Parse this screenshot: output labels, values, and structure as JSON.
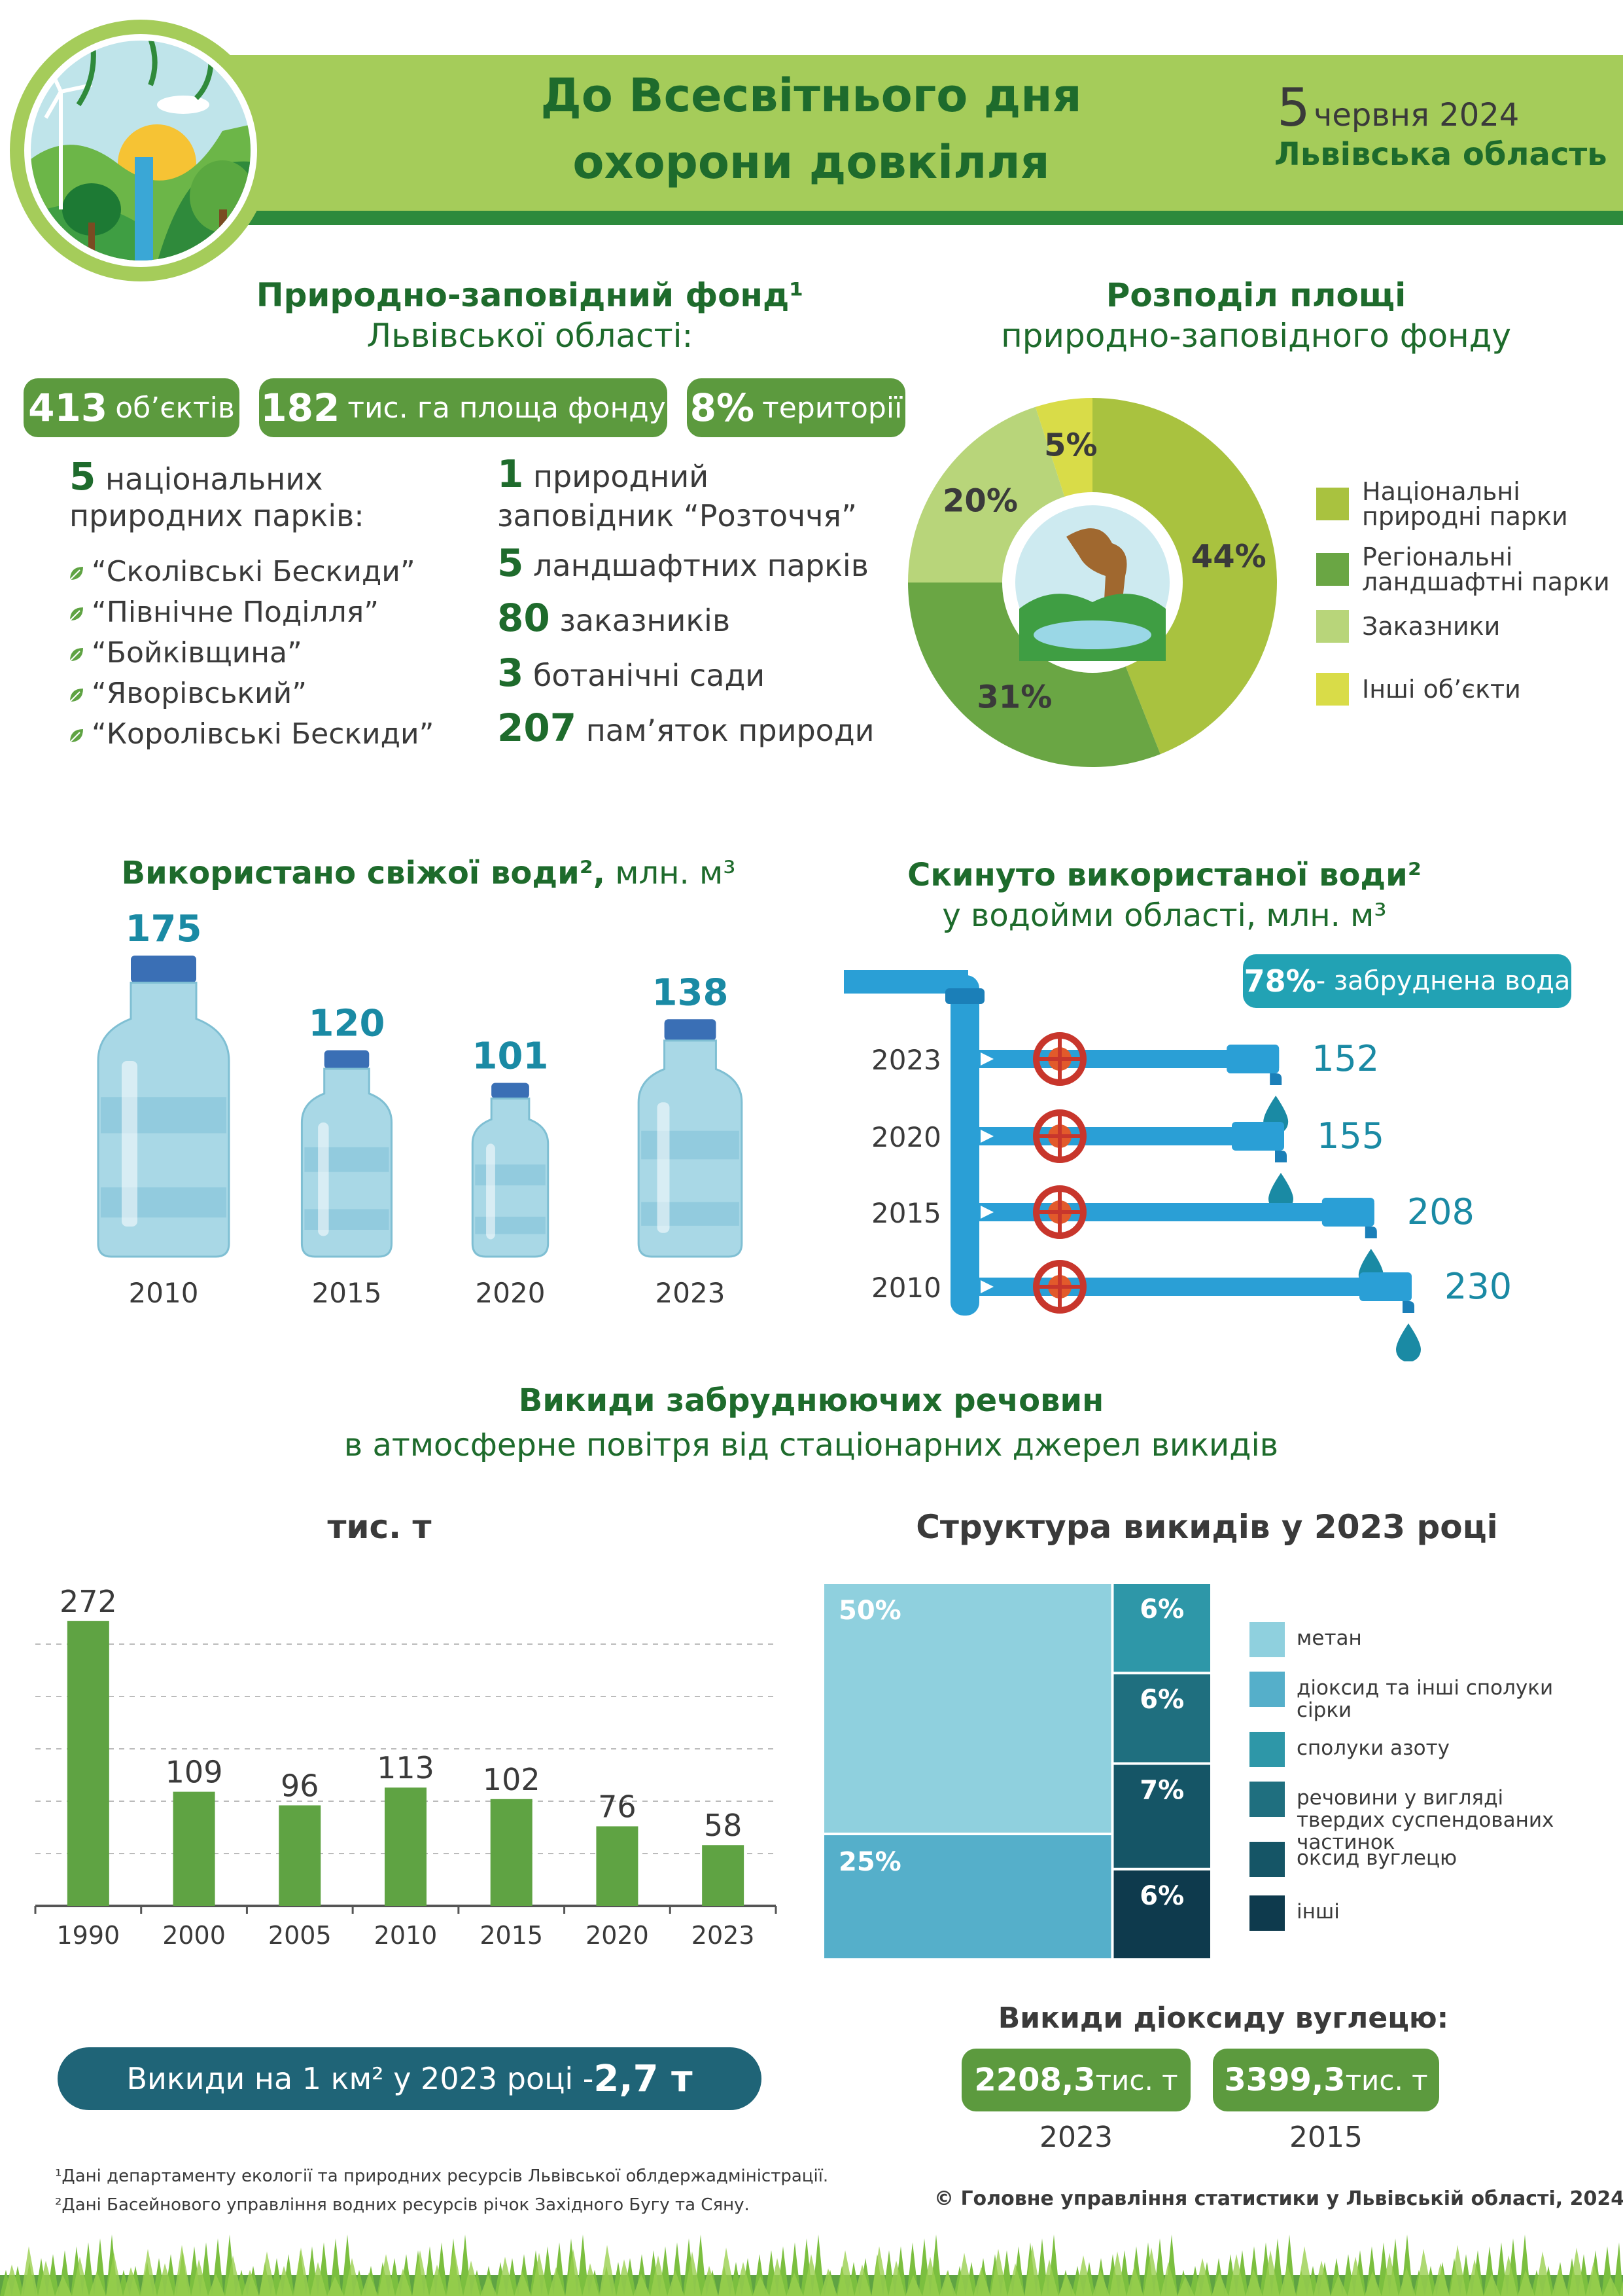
{
  "header": {
    "title_line1": "До Всесвітнього дня",
    "title_line2": "охорони довкілля",
    "date_day": "5",
    "date_rest": "червня 2024",
    "region": "Львівська область"
  },
  "fund": {
    "title_line1": "Природно-заповідний фонд¹",
    "title_line2": "Львівської області:",
    "pills": [
      {
        "num": "413",
        "text": "об’єктів"
      },
      {
        "num": "182",
        "text": "тис. га площа фонду"
      },
      {
        "num": "8%",
        "text": "території"
      }
    ],
    "parks_num": "5",
    "parks_line1": "національних",
    "parks_line2": "природних парків:",
    "parks": [
      "“Сколівські Бескиди”",
      "“Північне Поділля”",
      "“Бойківщина”",
      "“Яворівський”",
      "“Королівські Бескиди”"
    ],
    "stats": [
      {
        "num": "1",
        "text": "природний",
        "text2": "заповідник “Розточчя”"
      },
      {
        "num": "5",
        "text": "ландшафтних парків"
      },
      {
        "num": "80",
        "text": "заказників"
      },
      {
        "num": "3",
        "text": "ботанічні сади"
      },
      {
        "num": "207",
        "text": "пам’яток природи"
      }
    ]
  },
  "distribution": {
    "title_line1": "Розподіл площі",
    "title_line2": "природно-заповідного фонду",
    "chart_ref": "pie"
  },
  "fresh_water": {
    "title_bold": "Використано свіжої води²,",
    "title_rest": " млн. м³"
  },
  "discharged": {
    "title_line1": "Скинуто використаної води²",
    "title_line2": "у водойми області, млн. м³",
    "polluted_num": "78%",
    "polluted_text": " - забруднена вода"
  },
  "emissions": {
    "title_line1": "Викиди забруднюючих речовин",
    "title_line2": "в атмосферне повітря від стаціонарних джерел викидів",
    "unit_label": "тис. т",
    "structure_title": "Структура викидів у 2023 році",
    "per_km_text": "Викиди на 1 км² у 2023 році - ",
    "per_km_value": "2,7 т",
    "co2_title": "Викиди діоксиду вуглецю:",
    "co2": [
      {
        "value": "2208,3",
        "unit": " тис. т",
        "year": "2023"
      },
      {
        "value": "3399,3",
        "unit": " тис. т",
        "year": "2015"
      }
    ]
  },
  "footnotes": {
    "note1": "¹Дані департаменту екології та природних ресурсів Львівської облдержадміністрації.",
    "note2": "²Дані Басейнового управління водних ресурсів річок Західного Бугу та Сяну.",
    "copyright": "© Головне управління статистики у Львівській області, 2024"
  },
  "chart_data": [
    {
      "id": "pie",
      "type": "pie",
      "title": "Розподіл площі природно-заповідного фонду",
      "categories": [
        "Національні природні парки",
        "Регіональні ландшафтні парки",
        "Заказники",
        "Інші об’єкти"
      ],
      "values": [
        44,
        31,
        20,
        5
      ],
      "labels": [
        "44%",
        "31%",
        "20%",
        "5%"
      ],
      "colors": [
        "#a9c23f",
        "#6aa644",
        "#b8d57a",
        "#d9dc48"
      ],
      "legend_position": "right"
    },
    {
      "id": "fresh",
      "type": "bar",
      "title": "Використано свіжої води², млн. м³",
      "categories": [
        "2010",
        "2015",
        "2020",
        "2023"
      ],
      "values": [
        175,
        120,
        101,
        138
      ]
    },
    {
      "id": "discharge",
      "type": "bar",
      "title": "Скинуто використаної води² у водойми області, млн. м³",
      "categories": [
        "2023",
        "2020",
        "2015",
        "2010"
      ],
      "values": [
        152,
        155,
        208,
        230
      ]
    },
    {
      "id": "emis",
      "type": "bar",
      "ylabel": "тис. т",
      "categories": [
        "1990",
        "2000",
        "2005",
        "2010",
        "2015",
        "2020",
        "2023"
      ],
      "values": [
        272,
        109,
        96,
        113,
        102,
        76,
        58
      ],
      "ylim": [
        0,
        300
      ],
      "color": "#5fa343",
      "grid": true
    },
    {
      "id": "struct",
      "type": "treemap",
      "title": "Структура викидів у 2023 році",
      "categories": [
        "метан",
        "діоксид та інші сполуки сірки",
        "сполуки азоту",
        "речовини у вигляді твердих суспендованих частинок",
        "оксид вуглецю",
        "інші"
      ],
      "values": [
        50,
        25,
        6,
        6,
        7,
        6
      ],
      "labels": [
        "50%",
        "25%",
        "6%",
        "6%",
        "7%",
        "6%"
      ],
      "colors": [
        "#8fd0de",
        "#55afca",
        "#2e97a8",
        "#1f6f7f",
        "#155566",
        "#0e3a4d"
      ]
    }
  ]
}
